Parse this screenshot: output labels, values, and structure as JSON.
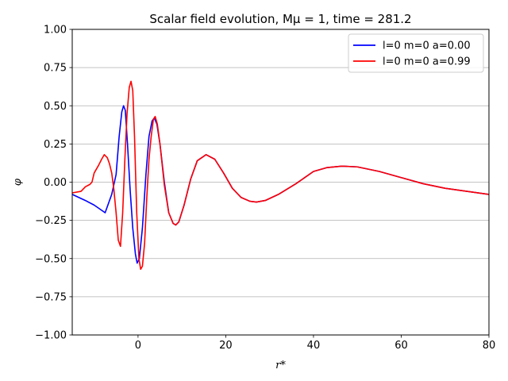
{
  "chart_data": {
    "type": "line",
    "title": "Scalar field evolution, Mμ = 1, time = 281.2",
    "xlabel": "r*",
    "ylabel": "φ",
    "xlim": [
      -15,
      80
    ],
    "ylim": [
      -1.0,
      1.0
    ],
    "x_ticks": [
      0,
      20,
      40,
      60,
      80
    ],
    "x_tick_labels": [
      "0",
      "20",
      "40",
      "60",
      "80"
    ],
    "y_ticks": [
      -1.0,
      -0.75,
      -0.5,
      -0.25,
      0.0,
      0.25,
      0.5,
      0.75,
      1.0
    ],
    "y_tick_labels": [
      "−1.00",
      "−0.75",
      "−0.50",
      "−0.25",
      "0.00",
      "0.25",
      "0.50",
      "0.75",
      "1.00"
    ],
    "grid": "horizontal",
    "legend_position": "top-right",
    "series": [
      {
        "name": "l=0 m=0 a=0.00",
        "color": "#0000ff",
        "points": [
          [
            -15,
            -0.08
          ],
          [
            -12,
            -0.12
          ],
          [
            -10,
            -0.15
          ],
          [
            -8.5,
            -0.18
          ],
          [
            -7.5,
            -0.2
          ],
          [
            -6,
            -0.08
          ],
          [
            -5,
            0.05
          ],
          [
            -4.3,
            0.3
          ],
          [
            -3.7,
            0.46
          ],
          [
            -3.3,
            0.5
          ],
          [
            -2.9,
            0.47
          ],
          [
            -2.4,
            0.25
          ],
          [
            -1.8,
            -0.05
          ],
          [
            -1.2,
            -0.3
          ],
          [
            -0.6,
            -0.47
          ],
          [
            -0.2,
            -0.53
          ],
          [
            0.3,
            -0.5
          ],
          [
            1,
            -0.3
          ],
          [
            1.8,
            0.05
          ],
          [
            2.5,
            0.3
          ],
          [
            3.2,
            0.4
          ],
          [
            3.7,
            0.42
          ],
          [
            4.3,
            0.38
          ],
          [
            5,
            0.25
          ],
          [
            6,
            0.0
          ],
          [
            7,
            -0.2
          ],
          [
            8,
            -0.27
          ],
          [
            8.6,
            -0.28
          ],
          [
            9.3,
            -0.26
          ],
          [
            10.5,
            -0.15
          ],
          [
            12,
            0.02
          ],
          [
            13.5,
            0.14
          ],
          [
            15.5,
            0.18
          ],
          [
            17.5,
            0.15
          ],
          [
            19.5,
            0.06
          ],
          [
            21.5,
            -0.04
          ],
          [
            23.5,
            -0.1
          ],
          [
            25.5,
            -0.125
          ],
          [
            27,
            -0.13
          ],
          [
            29,
            -0.12
          ],
          [
            32,
            -0.08
          ],
          [
            36,
            -0.01
          ],
          [
            40,
            0.07
          ],
          [
            43,
            0.095
          ],
          [
            46.5,
            0.105
          ],
          [
            50,
            0.1
          ],
          [
            55,
            0.07
          ],
          [
            60,
            0.03
          ],
          [
            65,
            -0.01
          ],
          [
            70,
            -0.04
          ],
          [
            75,
            -0.06
          ],
          [
            80,
            -0.08
          ]
        ]
      },
      {
        "name": "l=0 m=0 a=0.99",
        "color": "#ff0000",
        "points": [
          [
            -15,
            -0.07
          ],
          [
            -13,
            -0.06
          ],
          [
            -12,
            -0.03
          ],
          [
            -11,
            -0.015
          ],
          [
            -10.5,
            0.0
          ],
          [
            -10,
            0.06
          ],
          [
            -9,
            0.11
          ],
          [
            -8.3,
            0.15
          ],
          [
            -7.7,
            0.18
          ],
          [
            -7,
            0.16
          ],
          [
            -6.5,
            0.12
          ],
          [
            -6,
            0.06
          ],
          [
            -5.5,
            -0.05
          ],
          [
            -5,
            -0.2
          ],
          [
            -4.5,
            -0.38
          ],
          [
            -4,
            -0.42
          ],
          [
            -3.5,
            -0.2
          ],
          [
            -3,
            0.15
          ],
          [
            -2.5,
            0.45
          ],
          [
            -2,
            0.62
          ],
          [
            -1.6,
            0.66
          ],
          [
            -1.2,
            0.6
          ],
          [
            -0.8,
            0.3
          ],
          [
            -0.3,
            -0.2
          ],
          [
            0.2,
            -0.5
          ],
          [
            0.6,
            -0.57
          ],
          [
            1,
            -0.55
          ],
          [
            1.5,
            -0.4
          ],
          [
            2,
            -0.1
          ],
          [
            2.5,
            0.15
          ],
          [
            3,
            0.3
          ],
          [
            3.5,
            0.41
          ],
          [
            3.9,
            0.43
          ],
          [
            4.4,
            0.38
          ],
          [
            5,
            0.25
          ],
          [
            6,
            -0.02
          ],
          [
            7,
            -0.2
          ],
          [
            8,
            -0.27
          ],
          [
            8.6,
            -0.28
          ],
          [
            9.3,
            -0.26
          ],
          [
            10.5,
            -0.15
          ],
          [
            12,
            0.02
          ],
          [
            13.5,
            0.14
          ],
          [
            15.5,
            0.18
          ],
          [
            17.5,
            0.15
          ],
          [
            19.5,
            0.06
          ],
          [
            21.5,
            -0.04
          ],
          [
            23.5,
            -0.1
          ],
          [
            25.5,
            -0.125
          ],
          [
            27,
            -0.13
          ],
          [
            29,
            -0.12
          ],
          [
            32,
            -0.08
          ],
          [
            36,
            -0.01
          ],
          [
            40,
            0.07
          ],
          [
            43,
            0.095
          ],
          [
            46.5,
            0.105
          ],
          [
            50,
            0.1
          ],
          [
            55,
            0.07
          ],
          [
            60,
            0.03
          ],
          [
            65,
            -0.01
          ],
          [
            70,
            -0.04
          ],
          [
            75,
            -0.06
          ],
          [
            80,
            -0.08
          ]
        ]
      }
    ]
  }
}
